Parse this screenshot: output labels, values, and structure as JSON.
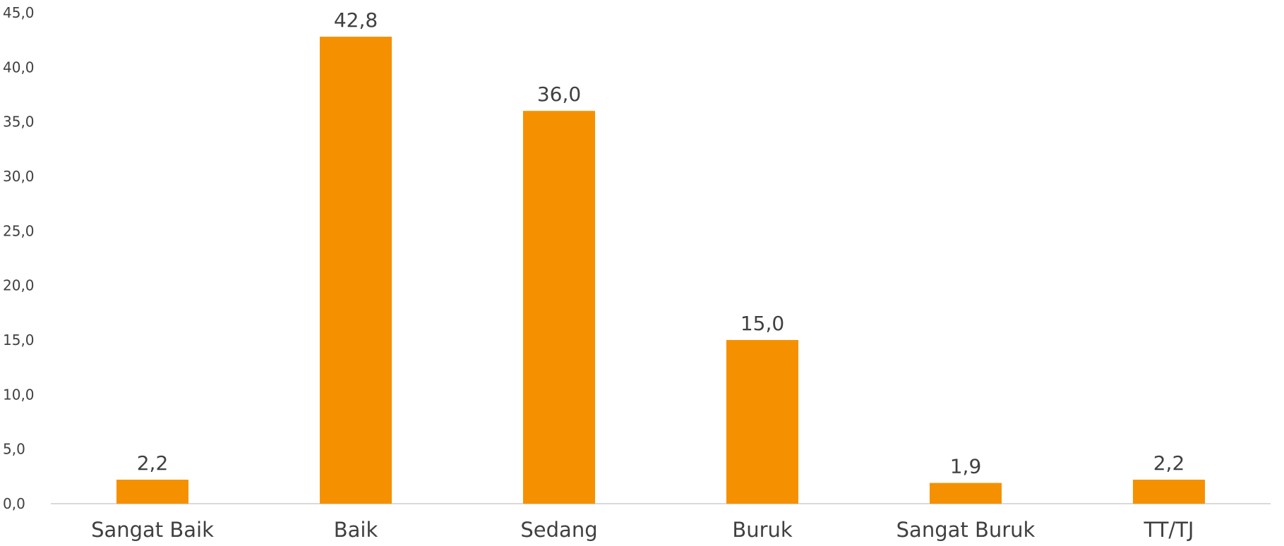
{
  "chart_data": {
    "type": "bar",
    "title": "",
    "xlabel": "",
    "ylabel": "",
    "categories": [
      "Sangat Baik",
      "Baik",
      "Sedang",
      "Buruk",
      "Sangat Buruk",
      "TT/TJ"
    ],
    "values": [
      2.2,
      42.8,
      36.0,
      15.0,
      1.9,
      2.2
    ],
    "value_labels": [
      "2,2",
      "42,8",
      "36,0",
      "15,0",
      "1,9",
      "2,2"
    ],
    "ylim": [
      0,
      45
    ],
    "yticks": [
      0,
      5,
      10,
      15,
      20,
      25,
      30,
      35,
      40,
      45
    ],
    "ytick_labels": [
      "0,0",
      "5,0",
      "10,0",
      "15,0",
      "20,0",
      "25,0",
      "30,0",
      "35,0",
      "40,0",
      "45,0"
    ],
    "grid": false,
    "legend": "none",
    "bar_color": "#F59100",
    "axis_color": "#D9D9D9"
  }
}
